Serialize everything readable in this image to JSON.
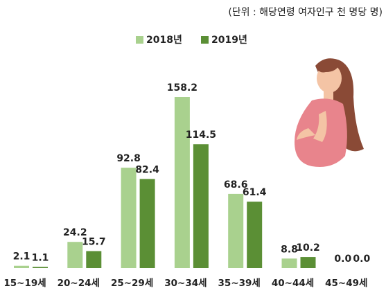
{
  "chart_data": {
    "type": "bar",
    "subtitle": "(단위 : 해당연령 여자인구 천 명당 명)",
    "categories": [
      "15~19세",
      "20~24세",
      "25~29세",
      "30~34세",
      "35~39세",
      "40~44세",
      "45~49세"
    ],
    "series": [
      {
        "name": "2018년",
        "color": "#a9d18e",
        "values": [
          2.1,
          24.2,
          92.8,
          158.2,
          68.6,
          8.8,
          0.0
        ],
        "value_labels": [
          "2.1",
          "24.2",
          "92.8",
          "158.2",
          "68.6",
          "8.8",
          "0.0"
        ]
      },
      {
        "name": "2019년",
        "color": "#5b8f35",
        "values": [
          1.1,
          15.7,
          82.4,
          114.5,
          61.4,
          10.2,
          0.0
        ],
        "value_labels": [
          "1.1",
          "15.7",
          "82.4",
          "114.5",
          "61.4",
          "10.2",
          "0.0"
        ]
      }
    ],
    "legend": "top"
  }
}
